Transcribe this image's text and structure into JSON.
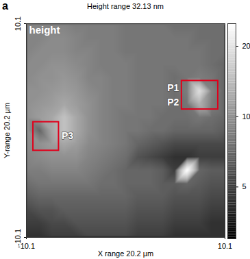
{
  "chart_data": {
    "type": "heatmap",
    "panel_label": "a",
    "title": "Height range 32.13 nm",
    "inset_label": "height",
    "x_label": "X range 20.2 µm",
    "y_label": "Y-range 20.2 µm",
    "xlim": [
      -10.1,
      10.1
    ],
    "ylim": [
      -10.1,
      10.1
    ],
    "xticks": [
      -10.1,
      10.1
    ],
    "yticks": [
      -10.1,
      10.1
    ],
    "x": [
      -10,
      -8.75,
      -7.5,
      -6.25,
      -5,
      -3.75,
      -2.5,
      -1.25,
      0,
      1.25,
      2.5,
      3.75,
      5,
      6.25,
      7.5,
      8.75,
      10
    ],
    "y": [
      10,
      8.75,
      7.5,
      6.25,
      5,
      3.75,
      2.5,
      1.25,
      0,
      -1.25,
      -2.5,
      -3.75,
      -5,
      -6.25,
      -7.5,
      -8.75,
      -10
    ],
    "values": [
      [
        9,
        9,
        9,
        9,
        8.5,
        8.5,
        8.5,
        8.5,
        8,
        8,
        8,
        8,
        7.5,
        7.5,
        7.5,
        7.5,
        7.5
      ],
      [
        9,
        9,
        9.5,
        9.5,
        9,
        8.5,
        8.5,
        8.5,
        8,
        8,
        8,
        8,
        8,
        8,
        7.5,
        7.5,
        7.5
      ],
      [
        9,
        9.5,
        9.5,
        9.5,
        9,
        9,
        8.5,
        8.5,
        8,
        8,
        8,
        8,
        8,
        8,
        8,
        7.5,
        7.5
      ],
      [
        9.5,
        9.5,
        10,
        10,
        9.5,
        9,
        8.5,
        8.5,
        8.5,
        8,
        8,
        8,
        8,
        8,
        8,
        7.5,
        7
      ],
      [
        9.5,
        10,
        10,
        10.5,
        10,
        9,
        9,
        8.5,
        8.5,
        8,
        8,
        8,
        7.5,
        8,
        8.5,
        8,
        7
      ],
      [
        10,
        10,
        10.5,
        11,
        10.5,
        9.5,
        9,
        8.5,
        8.5,
        8,
        8,
        8,
        7.5,
        8.5,
        19,
        9,
        7
      ],
      [
        10,
        10.5,
        11,
        12,
        11,
        10,
        9,
        8.5,
        8.5,
        8,
        8,
        8,
        7.5,
        8,
        13,
        8.5,
        7
      ],
      [
        10,
        11,
        12,
        15,
        12,
        10,
        9,
        8.5,
        8,
        8,
        8,
        7.5,
        7.5,
        7.5,
        8,
        7.5,
        7
      ],
      [
        10,
        7,
        12,
        15,
        12,
        10,
        9,
        8.5,
        8,
        8,
        7.5,
        7.5,
        7,
        7,
        7,
        7,
        6.5
      ],
      [
        9.5,
        10,
        11,
        12,
        11,
        9.5,
        9,
        8.5,
        8,
        7,
        6.5,
        6,
        5.5,
        5.5,
        5.5,
        5.5,
        5.5
      ],
      [
        9,
        9.5,
        10,
        10,
        10,
        9,
        8.5,
        8,
        7.5,
        6,
        5.5,
        5,
        4.5,
        4.5,
        5,
        5,
        5
      ],
      [
        8.5,
        8.5,
        9,
        9,
        9,
        8.5,
        8,
        7.5,
        7,
        7,
        7,
        6.5,
        5,
        25,
        7,
        6.5,
        6.5
      ],
      [
        7.5,
        8,
        8,
        8,
        8,
        8,
        7.5,
        7.5,
        7,
        7,
        7,
        6.5,
        6.5,
        7,
        6.5,
        6,
        6
      ],
      [
        6.5,
        7,
        7,
        7,
        7,
        7,
        7,
        7,
        7,
        6.5,
        6.5,
        6.5,
        6,
        6,
        6,
        5.5,
        5.5
      ],
      [
        5.5,
        6,
        6,
        6.5,
        6.5,
        6.5,
        6.5,
        6.5,
        6.5,
        6,
        6,
        6,
        5.5,
        5.5,
        5.5,
        5,
        5
      ],
      [
        5,
        5,
        5.5,
        5.5,
        6,
        6,
        6,
        6,
        6,
        5.5,
        5.5,
        5.5,
        5,
        5,
        5,
        4.5,
        4.5
      ],
      [
        4.5,
        4.5,
        5,
        5,
        5,
        5.5,
        5.5,
        5.5,
        5.5,
        5,
        5,
        5,
        4.5,
        4.5,
        4.5,
        4.5,
        4.5
      ]
    ],
    "colorbar": {
      "range": [
        3,
        25
      ],
      "ticks": [
        5,
        10,
        20
      ],
      "log": true
    },
    "annotations": [
      {
        "labels": [
          "P1",
          "P2"
        ],
        "x": [
          5.7,
          9.4
        ],
        "y": [
          2.0,
          4.7
        ]
      },
      {
        "labels": [
          "P3"
        ],
        "x": [
          -9.4,
          -6.8
        ],
        "y": [
          -1.9,
          0.8
        ]
      }
    ]
  }
}
